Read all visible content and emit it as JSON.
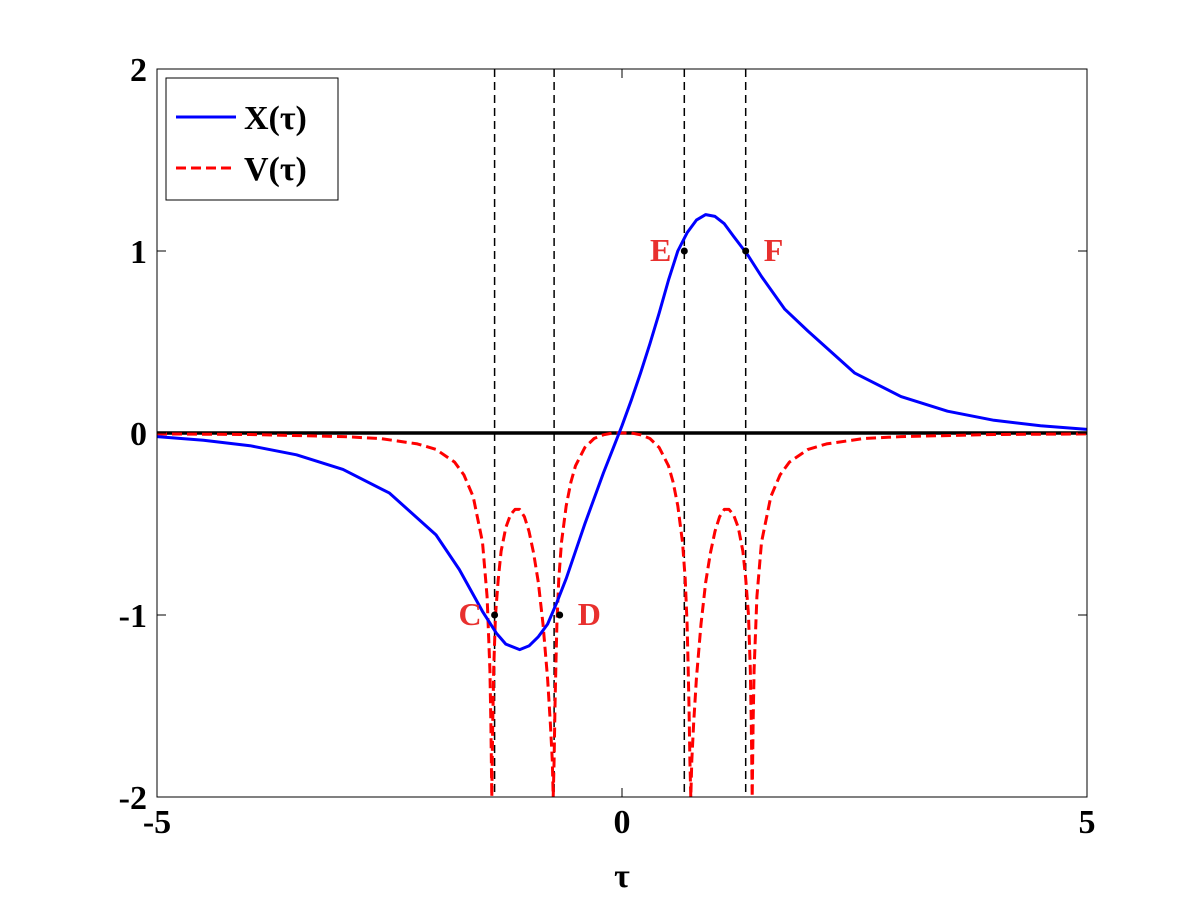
{
  "chart_data": {
    "type": "line",
    "title": "",
    "xlabel": "τ",
    "ylabel": "",
    "xlim": [
      -5,
      5
    ],
    "ylim": [
      -2,
      2
    ],
    "x_ticks": [
      -5,
      0,
      5
    ],
    "y_ticks": [
      -2,
      -1,
      0,
      1,
      2
    ],
    "grid": false,
    "legend_placement": "top-left",
    "series": [
      {
        "name": "X(τ)",
        "color": "#0000ff",
        "style": "solid",
        "x": [
          -5.0,
          -4.5,
          -4.0,
          -3.5,
          -3.0,
          -2.5,
          -2.0,
          -1.75,
          -1.5,
          -1.35,
          -1.25,
          -1.1,
          -1.0,
          -0.9,
          -0.8,
          -0.7,
          -0.6,
          -0.5,
          -0.4,
          -0.3,
          -0.2,
          -0.1,
          0.0,
          0.1,
          0.2,
          0.3,
          0.4,
          0.5,
          0.6,
          0.7,
          0.8,
          0.9,
          1.0,
          1.1,
          1.2,
          1.35,
          1.5,
          1.75,
          2.0,
          2.5,
          3.0,
          3.5,
          4.0,
          4.5,
          5.0
        ],
        "values": [
          -0.02,
          -0.04,
          -0.07,
          -0.12,
          -0.2,
          -0.33,
          -0.56,
          -0.75,
          -0.98,
          -1.1,
          -1.16,
          -1.19,
          -1.17,
          -1.12,
          -1.05,
          -0.93,
          -0.8,
          -0.65,
          -0.5,
          -0.36,
          -0.22,
          -0.09,
          0.04,
          0.18,
          0.33,
          0.49,
          0.66,
          0.84,
          1.0,
          1.1,
          1.17,
          1.2,
          1.19,
          1.15,
          1.08,
          0.98,
          0.86,
          0.68,
          0.56,
          0.33,
          0.2,
          0.12,
          0.07,
          0.04,
          0.02
        ]
      },
      {
        "name": "V(τ)",
        "color": "#ff0000",
        "style": "dashed",
        "x": [
          -5.0,
          -4.0,
          -3.0,
          -2.6,
          -2.2,
          -2.0,
          -1.8,
          -1.7,
          -1.6,
          -1.5,
          -1.45,
          -1.42,
          -1.41,
          -1.4,
          -1.39,
          -1.38,
          -1.36,
          -1.33,
          -1.3,
          -1.25,
          -1.2,
          -1.15,
          -1.1,
          -1.05,
          -1.0,
          -0.95,
          -0.9,
          -0.85,
          -0.8,
          -0.77,
          -0.75,
          -0.74,
          -0.73,
          -0.72,
          -0.71,
          -0.7,
          -0.68,
          -0.65,
          -0.6,
          -0.55,
          -0.5,
          -0.4,
          -0.3,
          -0.2,
          -0.1,
          0.0,
          0.1,
          0.2,
          0.3,
          0.4,
          0.5,
          0.55,
          0.6,
          0.65,
          0.68,
          0.7,
          0.71,
          0.72,
          0.73,
          0.74,
          0.75,
          0.77,
          0.8,
          0.85,
          0.9,
          0.95,
          1.0,
          1.05,
          1.1,
          1.15,
          1.2,
          1.25,
          1.3,
          1.33,
          1.36,
          1.38,
          1.39,
          1.4,
          1.41,
          1.42,
          1.45,
          1.5,
          1.6,
          1.7,
          1.8,
          2.0,
          2.2,
          2.6,
          3.0,
          4.0,
          5.0
        ],
        "values": [
          -0.005,
          -0.008,
          -0.02,
          -0.03,
          -0.06,
          -0.09,
          -0.16,
          -0.23,
          -0.35,
          -0.6,
          -0.9,
          -1.3,
          -1.6,
          -2.0,
          -1.6,
          -1.3,
          -1.0,
          -0.8,
          -0.65,
          -0.52,
          -0.45,
          -0.42,
          -0.42,
          -0.46,
          -0.54,
          -0.66,
          -0.82,
          -1.05,
          -1.35,
          -1.6,
          -1.8,
          -2.0,
          -1.8,
          -1.5,
          -1.25,
          -1.05,
          -0.8,
          -0.6,
          -0.4,
          -0.27,
          -0.18,
          -0.08,
          -0.03,
          -0.01,
          0.0,
          0.0,
          0.0,
          -0.01,
          -0.03,
          -0.08,
          -0.18,
          -0.27,
          -0.4,
          -0.6,
          -0.8,
          -1.05,
          -1.25,
          -1.5,
          -1.8,
          -2.0,
          -1.8,
          -1.6,
          -1.35,
          -1.05,
          -0.82,
          -0.66,
          -0.54,
          -0.46,
          -0.42,
          -0.42,
          -0.45,
          -0.52,
          -0.65,
          -0.8,
          -1.0,
          -1.3,
          -1.6,
          -2.0,
          -1.6,
          -1.3,
          -0.9,
          -0.6,
          -0.35,
          -0.23,
          -0.16,
          -0.09,
          -0.06,
          -0.03,
          -0.02,
          -0.008,
          -0.005
        ]
      }
    ],
    "reference_lines": {
      "horizontal": [
        {
          "y": 0,
          "color": "#000000",
          "style": "solid"
        }
      ],
      "vertical": [
        {
          "x": -1.37,
          "color": "#000000",
          "style": "dashed"
        },
        {
          "x": -0.73,
          "color": "#000000",
          "style": "dashed"
        },
        {
          "x": 0.67,
          "color": "#000000",
          "style": "dashed"
        },
        {
          "x": 1.33,
          "color": "#000000",
          "style": "dashed"
        }
      ]
    },
    "annotations": [
      {
        "label": "C",
        "x": -1.37,
        "y": -1.0,
        "color": "#e8302e",
        "side": "left"
      },
      {
        "label": "D",
        "x": -0.67,
        "y": -1.0,
        "color": "#e8302e",
        "side": "right"
      },
      {
        "label": "E",
        "x": 0.67,
        "y": 1.0,
        "color": "#e8302e",
        "side": "left"
      },
      {
        "label": "F",
        "x": 1.33,
        "y": 1.0,
        "color": "#e8302e",
        "side": "right"
      }
    ]
  }
}
